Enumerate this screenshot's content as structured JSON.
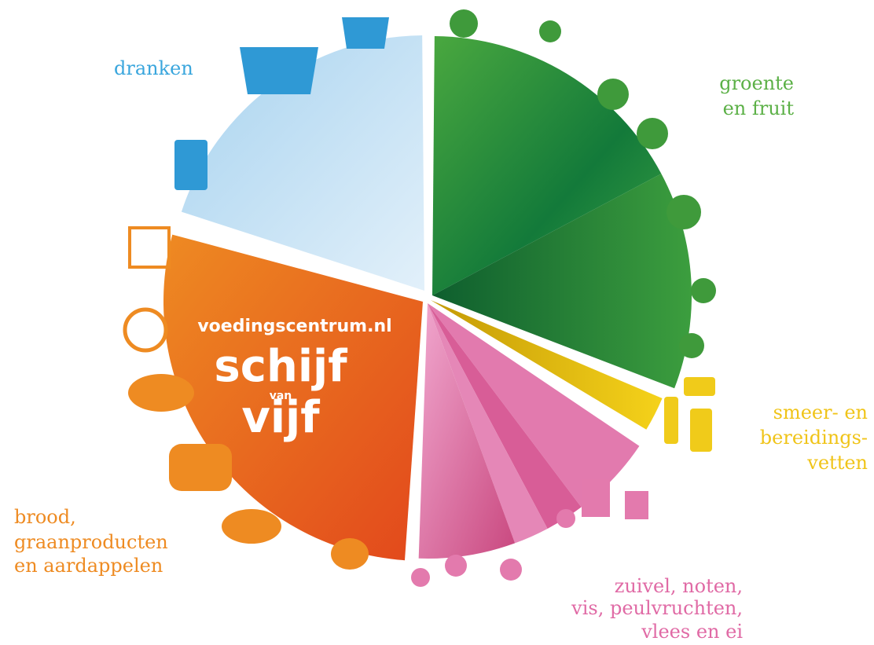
{
  "segments": [
    {
      "label": [
        "groente",
        "en fruit"
      ]
    },
    {
      "label": [
        "smeer- en",
        "bereidings-",
        "vetten"
      ]
    },
    {
      "label": [
        "zuivel, noten,",
        "vis, peulvruchten,",
        "vlees en ei"
      ]
    },
    {
      "label": [
        "brood,",
        "graanproducten",
        "en aardappelen"
      ]
    },
    {
      "label": [
        "dranken"
      ]
    }
  ],
  "logo": {
    "site": "voedingscentrum.nl",
    "line1": "schijf",
    "line2": "van",
    "line3": "vijf"
  }
}
